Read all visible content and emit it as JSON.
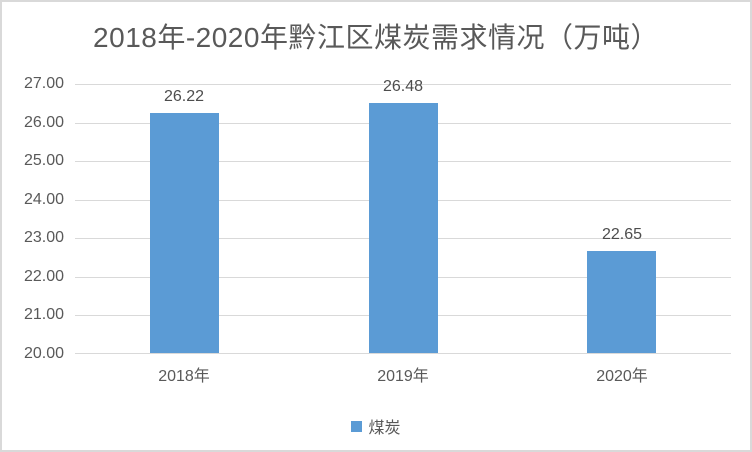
{
  "chart_data": {
    "type": "bar",
    "title": "2018年-2020年黔江区煤炭需求情况（万吨）",
    "categories": [
      "2018年",
      "2019年",
      "2020年"
    ],
    "series": [
      {
        "name": "煤炭",
        "values": [
          26.22,
          26.48,
          22.65
        ]
      }
    ],
    "data_labels": [
      "26.22",
      "26.48",
      "22.65"
    ],
    "ylim": [
      20,
      27
    ],
    "ytick_step": 1.0,
    "yticks": [
      "27.00",
      "26.00",
      "25.00",
      "24.00",
      "23.00",
      "22.00",
      "21.00",
      "20.00"
    ],
    "grid": true,
    "legend": {
      "position": "bottom",
      "entries": [
        "煤炭"
      ]
    },
    "colors": {
      "bar": "#5b9bd5",
      "title_text": "#595959",
      "axis_text": "#595959",
      "data_label_text": "#4d4d4d",
      "gridline": "#d9d9d9",
      "frame_border": "#d9d9d9",
      "background": "#ffffff"
    }
  },
  "legend": {
    "label": "煤炭"
  }
}
